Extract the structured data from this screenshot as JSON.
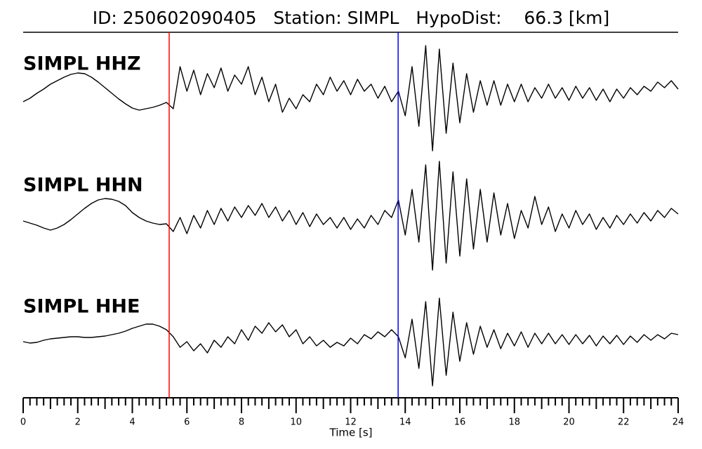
{
  "chart_data": {
    "type": "line",
    "title": "ID: 250602090405   Station: SIMPL   HypoDist:    66.3 [km]",
    "xlabel": "Time [s]",
    "xlim": [
      0,
      24
    ],
    "xticks": [
      0,
      2,
      4,
      6,
      8,
      10,
      12,
      14,
      16,
      18,
      20,
      22,
      24
    ],
    "xminor_divisions": 8,
    "label_color": "#4a9a0a",
    "picks": [
      {
        "time": 5.35,
        "color": "#ff0000"
      },
      {
        "time": 13.74,
        "color": "#0000ff"
      }
    ],
    "x": [
      0,
      0.25,
      0.5,
      0.75,
      1,
      1.25,
      1.5,
      1.75,
      2,
      2.25,
      2.5,
      2.75,
      3,
      3.25,
      3.5,
      3.75,
      4,
      4.25,
      4.5,
      4.75,
      5,
      5.25,
      5.5,
      5.75,
      6,
      6.25,
      6.5,
      6.75,
      7,
      7.25,
      7.5,
      7.75,
      8,
      8.25,
      8.5,
      8.75,
      9,
      9.25,
      9.5,
      9.75,
      10,
      10.25,
      10.5,
      10.75,
      11,
      11.25,
      11.5,
      11.75,
      12,
      12.25,
      12.5,
      12.75,
      13,
      13.25,
      13.5,
      13.75,
      14,
      14.25,
      14.5,
      14.75,
      15,
      15.25,
      15.5,
      15.75,
      16,
      16.25,
      16.5,
      16.75,
      17,
      17.25,
      17.5,
      17.75,
      18,
      18.25,
      18.5,
      18.75,
      19,
      19.25,
      19.5,
      19.75,
      20,
      20.25,
      20.5,
      20.75,
      21,
      21.25,
      21.5,
      21.75,
      22,
      22.25,
      22.5,
      22.75,
      23,
      23.25,
      23.5,
      23.75,
      24
    ],
    "series": [
      {
        "name": "SIMPL HHZ",
        "color": "#000000",
        "values": [
          -10,
          -5,
          2,
          8,
          15,
          20,
          25,
          29,
          31,
          30,
          25,
          18,
          10,
          2,
          -6,
          -13,
          -19,
          -22,
          -20,
          -18,
          -15,
          -11,
          -20,
          40,
          5,
          35,
          0,
          30,
          10,
          38,
          5,
          28,
          15,
          40,
          0,
          25,
          -10,
          15,
          -25,
          -5,
          -20,
          0,
          -10,
          15,
          0,
          25,
          5,
          20,
          0,
          22,
          5,
          15,
          -5,
          12,
          -10,
          5,
          -30,
          40,
          -45,
          70,
          -80,
          65,
          -55,
          45,
          -40,
          30,
          -25,
          20,
          -15,
          20,
          -15,
          15,
          -10,
          15,
          -10,
          10,
          -5,
          15,
          -5,
          10,
          -8,
          12,
          -5,
          10,
          -8,
          8,
          -10,
          8,
          -5,
          10,
          0,
          12,
          5,
          18,
          10,
          20,
          8
        ]
      },
      {
        "name": "SIMPL HHN",
        "color": "#000000",
        "values": [
          0,
          -3,
          -6,
          -10,
          -13,
          -10,
          -5,
          2,
          10,
          18,
          25,
          30,
          32,
          31,
          28,
          22,
          12,
          5,
          0,
          -3,
          -5,
          -4,
          -15,
          5,
          -18,
          8,
          -10,
          15,
          -5,
          18,
          0,
          20,
          5,
          22,
          8,
          25,
          5,
          20,
          0,
          15,
          -5,
          12,
          -8,
          10,
          -5,
          5,
          -10,
          5,
          -12,
          3,
          -10,
          8,
          -5,
          15,
          5,
          30,
          -20,
          45,
          -30,
          80,
          -70,
          85,
          -60,
          70,
          -50,
          60,
          -40,
          45,
          -30,
          40,
          -20,
          25,
          -25,
          15,
          -10,
          35,
          -5,
          20,
          -15,
          10,
          -10,
          15,
          -5,
          10,
          -12,
          5,
          -10,
          8,
          -5,
          10,
          -3,
          12,
          0,
          15,
          5,
          18,
          10
        ]
      },
      {
        "name": "SIMPL HHE",
        "color": "#000000",
        "values": [
          -2,
          -4,
          -3,
          0,
          2,
          3,
          4,
          5,
          5,
          4,
          4,
          5,
          6,
          8,
          10,
          13,
          17,
          20,
          23,
          23,
          20,
          15,
          5,
          -10,
          -2,
          -15,
          -5,
          -18,
          0,
          -10,
          5,
          -5,
          15,
          0,
          20,
          10,
          25,
          12,
          22,
          5,
          15,
          -5,
          5,
          -8,
          0,
          -10,
          -3,
          -8,
          3,
          -5,
          8,
          2,
          12,
          5,
          15,
          5,
          -25,
          30,
          -40,
          55,
          -65,
          60,
          -50,
          40,
          -30,
          25,
          -20,
          20,
          -10,
          15,
          -12,
          10,
          -8,
          12,
          -10,
          10,
          -5,
          10,
          -5,
          8,
          -6,
          8,
          -5,
          7,
          -8,
          6,
          -5,
          7,
          -6,
          6,
          -3,
          8,
          0,
          8,
          2,
          10,
          8
        ]
      }
    ]
  }
}
